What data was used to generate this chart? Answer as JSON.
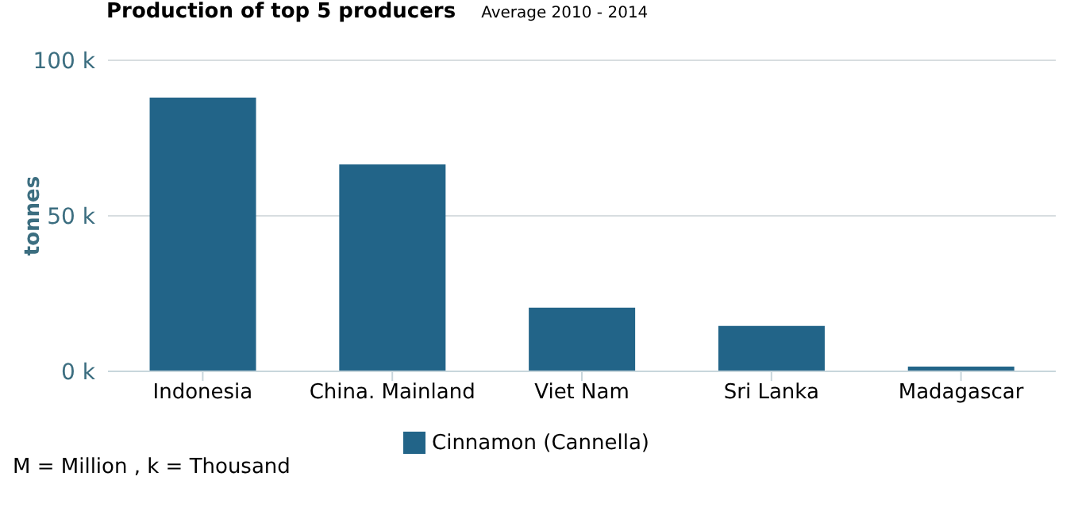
{
  "chart_data": {
    "type": "bar",
    "title": "Production of top 5 producers",
    "subtitle": "Average 2010 - 2014",
    "ylabel": "tonnes",
    "categories": [
      "Indonesia",
      "China. Mainland",
      "Viet Nam",
      "Sri Lanka",
      "Madagascar"
    ],
    "series": [
      {
        "name": "Cinnamon (Cannella)",
        "color": "#226488",
        "values": [
          88000,
          66500,
          20500,
          14600,
          1500
        ]
      }
    ],
    "ylim": [
      0,
      100000
    ],
    "yticks": [
      {
        "value": 0,
        "label": "0 k"
      },
      {
        "value": 50000,
        "label": "50 k"
      },
      {
        "value": 100000,
        "label": "100 k"
      }
    ],
    "grid": "y",
    "legend": "bottom",
    "annotations": [
      "M = Million , k = Thousand"
    ]
  }
}
